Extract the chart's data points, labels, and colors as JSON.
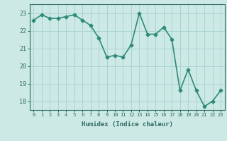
{
  "x": [
    0,
    1,
    2,
    3,
    4,
    5,
    6,
    7,
    8,
    9,
    10,
    11,
    12,
    13,
    14,
    15,
    16,
    17,
    18,
    19,
    20,
    21,
    22,
    23
  ],
  "y": [
    22.6,
    22.9,
    22.7,
    22.7,
    22.8,
    22.9,
    22.6,
    22.3,
    21.6,
    20.5,
    20.6,
    20.5,
    21.2,
    23.0,
    21.8,
    21.8,
    22.2,
    21.5,
    18.6,
    19.8,
    18.6,
    17.7,
    18.0,
    18.6
  ],
  "line_color": "#2e8b7a",
  "marker": "D",
  "marker_size": 2.5,
  "bg_color": "#cce9e5",
  "grid_color": "#aad4cf",
  "xlabel": "Humidex (Indice chaleur)",
  "ylim": [
    17.5,
    23.5
  ],
  "xlim": [
    -0.5,
    23.5
  ],
  "yticks": [
    18,
    19,
    20,
    21,
    22,
    23
  ],
  "xticks": [
    0,
    1,
    2,
    3,
    4,
    5,
    6,
    7,
    8,
    9,
    10,
    11,
    12,
    13,
    14,
    15,
    16,
    17,
    18,
    19,
    20,
    21,
    22,
    23
  ],
  "axis_color": "#2e6b5e",
  "tick_color": "#2e6b5e",
  "linewidth": 1.2
}
